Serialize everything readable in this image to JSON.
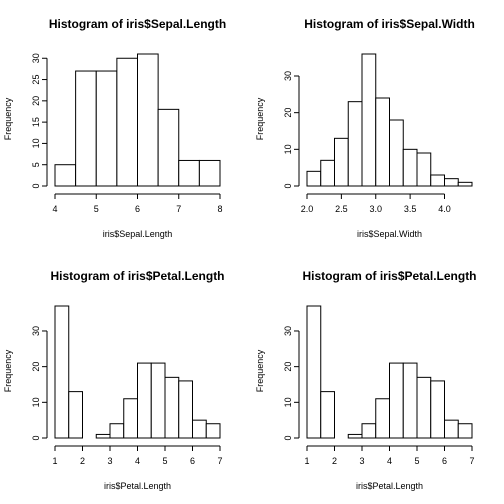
{
  "chart_data": [
    {
      "type": "bar",
      "title": "Histogram of iris$Sepal.Length",
      "xlabel": "iris$Sepal.Length",
      "ylabel": "Frequency",
      "bin_edges": [
        4.0,
        4.5,
        5.0,
        5.5,
        6.0,
        6.5,
        7.0,
        7.5,
        8.0
      ],
      "values": [
        5,
        27,
        27,
        30,
        31,
        18,
        6,
        6
      ],
      "xlim": [
        4.0,
        8.0
      ],
      "ylim": [
        0,
        31
      ],
      "xticks": [
        4,
        5,
        6,
        7,
        8
      ],
      "yticks": [
        0,
        5,
        10,
        15,
        20,
        25,
        30
      ]
    },
    {
      "type": "bar",
      "title": "Histogram of iris$Sepal.Width",
      "xlabel": "iris$Sepal.Width",
      "ylabel": "Frequency",
      "bin_edges": [
        2.0,
        2.2,
        2.4,
        2.6,
        2.8,
        3.0,
        3.2,
        3.4,
        3.6,
        3.8,
        4.0,
        4.2,
        4.4
      ],
      "values": [
        4,
        7,
        13,
        23,
        36,
        24,
        18,
        10,
        9,
        3,
        2,
        1
      ],
      "xlim": [
        2.0,
        4.4
      ],
      "ylim": [
        0,
        36
      ],
      "xticks": [
        "2.0",
        "2.5",
        "3.0",
        "3.5",
        "4.0"
      ],
      "yticks": [
        0,
        10,
        20,
        30
      ]
    },
    {
      "type": "bar",
      "title": "Histogram of iris$Petal.Length",
      "xlabel": "iris$Petal.Length",
      "ylabel": "Frequency",
      "bin_edges": [
        1.0,
        1.5,
        2.0,
        2.5,
        3.0,
        3.5,
        4.0,
        4.5,
        5.0,
        5.5,
        6.0,
        6.5,
        7.0
      ],
      "values": [
        37,
        13,
        0,
        1,
        4,
        11,
        21,
        21,
        17,
        16,
        5,
        4
      ],
      "xlim": [
        1.0,
        7.0
      ],
      "ylim": [
        0,
        37
      ],
      "xticks": [
        1,
        2,
        3,
        4,
        5,
        6,
        7
      ],
      "yticks": [
        0,
        10,
        20,
        30
      ]
    },
    {
      "type": "bar",
      "title": "Histogram of iris$Petal.Length",
      "xlabel": "iris$Petal.Length",
      "ylabel": "Frequency",
      "bin_edges": [
        1.0,
        1.5,
        2.0,
        2.5,
        3.0,
        3.5,
        4.0,
        4.5,
        5.0,
        5.5,
        6.0,
        6.5,
        7.0
      ],
      "values": [
        37,
        13,
        0,
        1,
        4,
        11,
        21,
        21,
        17,
        16,
        5,
        4
      ],
      "xlim": [
        1.0,
        7.0
      ],
      "ylim": [
        0,
        37
      ],
      "xticks": [
        1,
        2,
        3,
        4,
        5,
        6,
        7
      ],
      "yticks": [
        0,
        10,
        20,
        30
      ]
    }
  ]
}
